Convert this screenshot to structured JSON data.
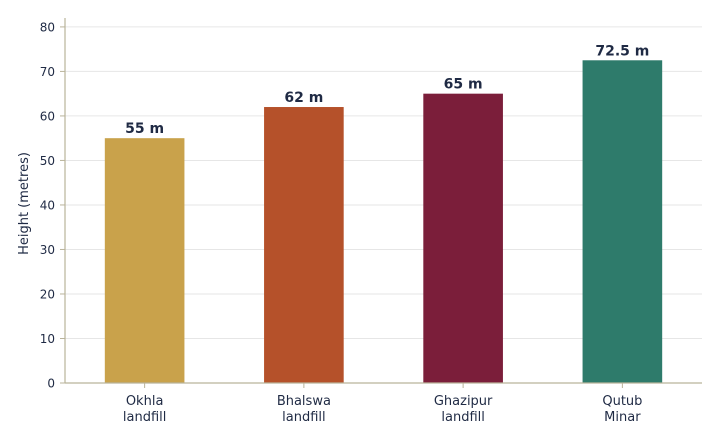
{
  "chart_data": {
    "type": "bar",
    "categories": [
      [
        "Okhla",
        "landfill"
      ],
      [
        "Bhalswa",
        "landfill"
      ],
      [
        "Ghazipur",
        "landfill"
      ],
      [
        "Qutub",
        "Minar"
      ]
    ],
    "values": [
      55,
      62,
      65,
      72.5
    ],
    "data_labels": [
      "55 m",
      "62 m",
      "65 m",
      "72.5 m"
    ],
    "colors": [
      "#c9a24b",
      "#b5512a",
      "#7b1e3a",
      "#2e7b6b"
    ],
    "title": "",
    "xlabel": "",
    "ylabel": "Height (metres)",
    "ylim": [
      0,
      82
    ],
    "yticks": [
      0,
      10,
      20,
      30,
      40,
      50,
      60,
      70,
      80
    ],
    "grid": true,
    "grid_axis": "y",
    "legend": "none"
  },
  "style": {
    "text_color": "#1f2a44",
    "axis_color": "#b9b39a",
    "grid_color": "#e6e6e6"
  }
}
